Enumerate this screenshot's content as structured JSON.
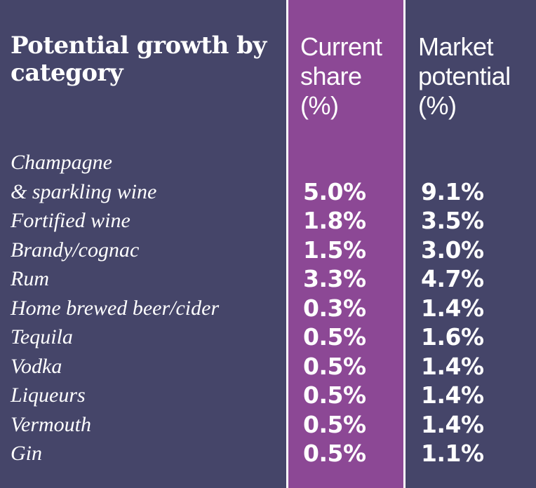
{
  "title": "Potential growth by category",
  "colors": {
    "background": "#454569",
    "current_share_column": "#8c4895",
    "text": "#ffffff",
    "divider": "#ffffff"
  },
  "chart_data": {
    "type": "table",
    "title": "Potential growth by category",
    "columns": [
      "Current share (%)",
      "Market potential (%)"
    ],
    "column_headers": {
      "current_share": "Current\nshare\n(%)",
      "market_potential": "Market\npotential\n(%)"
    },
    "rows": [
      {
        "category_lines": [
          "Champagne",
          "& sparkling wine"
        ],
        "current_share": "5.0%",
        "market_potential": "9.1%"
      },
      {
        "category_lines": [
          "Fortified wine"
        ],
        "current_share": "1.8%",
        "market_potential": "3.5%"
      },
      {
        "category_lines": [
          "Brandy/cognac"
        ],
        "current_share": "1.5%",
        "market_potential": "3.0%"
      },
      {
        "category_lines": [
          "Rum"
        ],
        "current_share": "3.3%",
        "market_potential": "4.7%"
      },
      {
        "category_lines": [
          "Home brewed beer/cider"
        ],
        "current_share": "0.3%",
        "market_potential": "1.4%"
      },
      {
        "category_lines": [
          "Tequila"
        ],
        "current_share": "0.5%",
        "market_potential": "1.6%"
      },
      {
        "category_lines": [
          "Vodka"
        ],
        "current_share": "0.5%",
        "market_potential": "1.4%"
      },
      {
        "category_lines": [
          "Liqueurs"
        ],
        "current_share": "0.5%",
        "market_potential": "1.4%"
      },
      {
        "category_lines": [
          "Vermouth"
        ],
        "current_share": "0.5%",
        "market_potential": "1.4%"
      },
      {
        "category_lines": [
          "Gin"
        ],
        "current_share": "0.5%",
        "market_potential": "1.1%"
      }
    ]
  }
}
